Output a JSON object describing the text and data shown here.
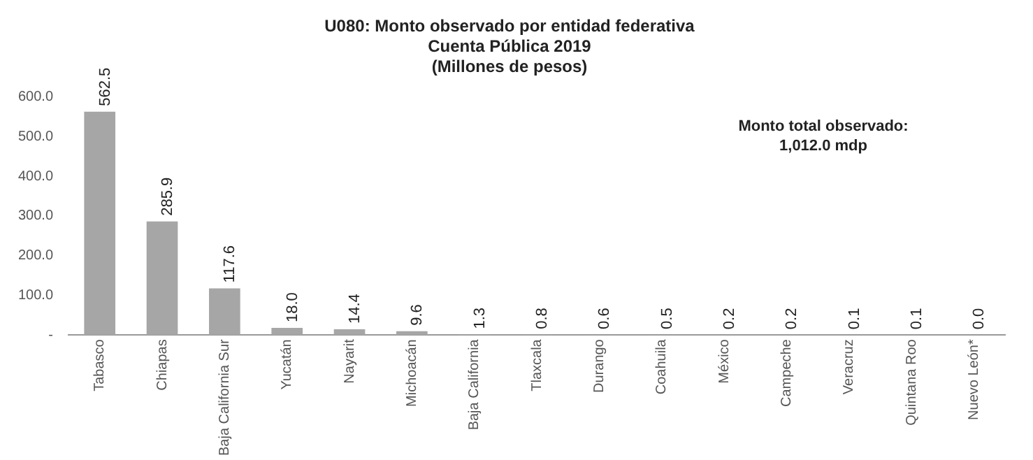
{
  "chart_data": {
    "type": "bar",
    "title": "U080: Monto observado por entidad federativa",
    "subtitle": "Cuenta Pública 2019\n(Millones de pesos)",
    "categories": [
      "Tabasco",
      "Chiapas",
      "Baja California Sur",
      "Yucatán",
      "Nayarit",
      "Michoacán",
      "Baja California",
      "Tlaxcala",
      "Durango",
      "Coahuila",
      "México",
      "Campeche",
      "Veracruz",
      "Quintana Roo",
      "Nuevo León*"
    ],
    "values": [
      562.5,
      285.9,
      117.6,
      18.0,
      14.4,
      9.6,
      1.3,
      0.8,
      0.6,
      0.5,
      0.2,
      0.2,
      0.1,
      0.1,
      0.0
    ],
    "value_labels": [
      "562.5",
      "285.9",
      "117.6",
      "18.0",
      "14.4",
      "9.6",
      "1.3",
      "0.8",
      "0.6",
      "0.5",
      "0.2",
      "0.2",
      "0.1",
      "0.1",
      "0.0"
    ],
    "color": "#a6a6a6",
    "ylim": [
      0,
      600
    ],
    "yticks": [
      {
        "value": 0,
        "label": "-"
      },
      {
        "value": 100,
        "label": "100.0"
      },
      {
        "value": 200,
        "label": "200.0"
      },
      {
        "value": 300,
        "label": "300.0"
      },
      {
        "value": 400,
        "label": "400.0"
      },
      {
        "value": 500,
        "label": "500.0"
      },
      {
        "value": 600,
        "label": "600.0"
      }
    ],
    "grid": false,
    "legend": false,
    "annotations": [
      "Monto total observado:\n1,012.0 mdp"
    ]
  }
}
